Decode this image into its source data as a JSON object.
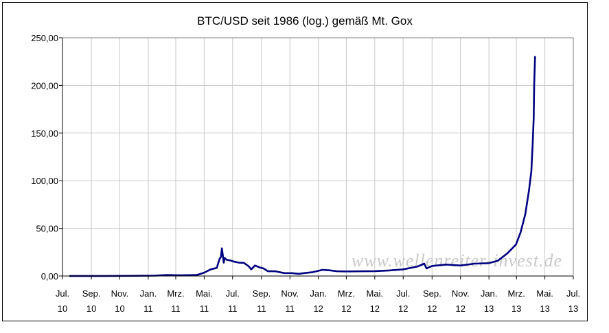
{
  "chart_data": {
    "type": "line",
    "title": "BTC/USD seit 1986 (log.) gemäß Mt. Gox",
    "watermark": "www.wellenreiter-invest.de",
    "ylim": [
      0,
      250
    ],
    "yticks": [
      0,
      50,
      100,
      150,
      200,
      250
    ],
    "ytick_labels": [
      "0,00",
      "50,00",
      "100,00",
      "150,00",
      "200,00",
      "250,00"
    ],
    "xlim": [
      "2010-07-01",
      "2013-07-01"
    ],
    "xticks": [
      {
        "date": "2010-07-01",
        "month": "Jul.",
        "year": "10"
      },
      {
        "date": "2010-09-01",
        "month": "Sep.",
        "year": "10"
      },
      {
        "date": "2010-11-01",
        "month": "Nov.",
        "year": "10"
      },
      {
        "date": "2011-01-01",
        "month": "Jan.",
        "year": "11"
      },
      {
        "date": "2011-03-01",
        "month": "Mrz.",
        "year": "11"
      },
      {
        "date": "2011-05-01",
        "month": "Mai.",
        "year": "11"
      },
      {
        "date": "2011-07-01",
        "month": "Jul.",
        "year": "11"
      },
      {
        "date": "2011-09-01",
        "month": "Sep.",
        "year": "11"
      },
      {
        "date": "2011-11-01",
        "month": "Nov.",
        "year": "11"
      },
      {
        "date": "2012-01-01",
        "month": "Jan.",
        "year": "12"
      },
      {
        "date": "2012-03-01",
        "month": "Mrz.",
        "year": "12"
      },
      {
        "date": "2012-05-01",
        "month": "Mai.",
        "year": "12"
      },
      {
        "date": "2012-07-01",
        "month": "Jul.",
        "year": "12"
      },
      {
        "date": "2012-09-01",
        "month": "Sep.",
        "year": "12"
      },
      {
        "date": "2012-11-01",
        "month": "Nov.",
        "year": "12"
      },
      {
        "date": "2013-01-01",
        "month": "Jan.",
        "year": "13"
      },
      {
        "date": "2013-03-01",
        "month": "Mrz.",
        "year": "13"
      },
      {
        "date": "2013-05-01",
        "month": "Mai.",
        "year": "13"
      },
      {
        "date": "2013-07-01",
        "month": "Jul.",
        "year": "13"
      }
    ],
    "grid": true,
    "series": [
      {
        "color": "#000080",
        "points": [
          [
            "2010-07-17",
            0.05
          ],
          [
            "2010-10-01",
            0.06
          ],
          [
            "2010-12-01",
            0.2
          ],
          [
            "2011-01-15",
            0.4
          ],
          [
            "2011-02-10",
            1.0
          ],
          [
            "2011-03-15",
            0.8
          ],
          [
            "2011-04-15",
            1.0
          ],
          [
            "2011-05-01",
            3.5
          ],
          [
            "2011-05-15",
            7.0
          ],
          [
            "2011-05-28",
            8.5
          ],
          [
            "2011-06-03",
            18.0
          ],
          [
            "2011-06-06",
            20.0
          ],
          [
            "2011-06-08",
            29.0
          ],
          [
            "2011-06-10",
            22.0
          ],
          [
            "2011-06-12",
            14.0
          ],
          [
            "2011-06-14",
            19.0
          ],
          [
            "2011-06-18",
            17.0
          ],
          [
            "2011-06-25",
            16.5
          ],
          [
            "2011-07-05",
            15.0
          ],
          [
            "2011-07-15",
            14.0
          ],
          [
            "2011-07-25",
            13.8
          ],
          [
            "2011-08-05",
            10.0
          ],
          [
            "2011-08-10",
            7.0
          ],
          [
            "2011-08-18",
            11.0
          ],
          [
            "2011-08-28",
            9.0
          ],
          [
            "2011-09-05",
            8.0
          ],
          [
            "2011-09-15",
            5.0
          ],
          [
            "2011-10-01",
            5.0
          ],
          [
            "2011-10-20",
            3.0
          ],
          [
            "2011-11-05",
            3.0
          ],
          [
            "2011-11-20",
            2.3
          ],
          [
            "2011-12-01",
            3.0
          ],
          [
            "2011-12-20",
            4.0
          ],
          [
            "2012-01-10",
            6.5
          ],
          [
            "2012-01-25",
            6.0
          ],
          [
            "2012-02-10",
            5.0
          ],
          [
            "2012-03-01",
            4.8
          ],
          [
            "2012-04-01",
            5.0
          ],
          [
            "2012-05-01",
            5.1
          ],
          [
            "2012-06-01",
            5.8
          ],
          [
            "2012-07-01",
            7.0
          ],
          [
            "2012-08-01",
            10.0
          ],
          [
            "2012-08-15",
            13.0
          ],
          [
            "2012-08-20",
            8.0
          ],
          [
            "2012-09-01",
            10.5
          ],
          [
            "2012-10-01",
            12.0
          ],
          [
            "2012-11-01",
            11.0
          ],
          [
            "2012-12-01",
            13.0
          ],
          [
            "2013-01-01",
            13.5
          ],
          [
            "2013-01-20",
            16.0
          ],
          [
            "2013-02-10",
            24.0
          ],
          [
            "2013-02-28",
            33.0
          ],
          [
            "2013-03-10",
            46.0
          ],
          [
            "2013-03-20",
            65.0
          ],
          [
            "2013-03-28",
            90.0
          ],
          [
            "2013-04-02",
            110.0
          ],
          [
            "2013-04-05",
            140.0
          ],
          [
            "2013-04-07",
            165.0
          ],
          [
            "2013-04-08",
            200.0
          ],
          [
            "2013-04-10",
            230.0
          ]
        ]
      }
    ]
  }
}
